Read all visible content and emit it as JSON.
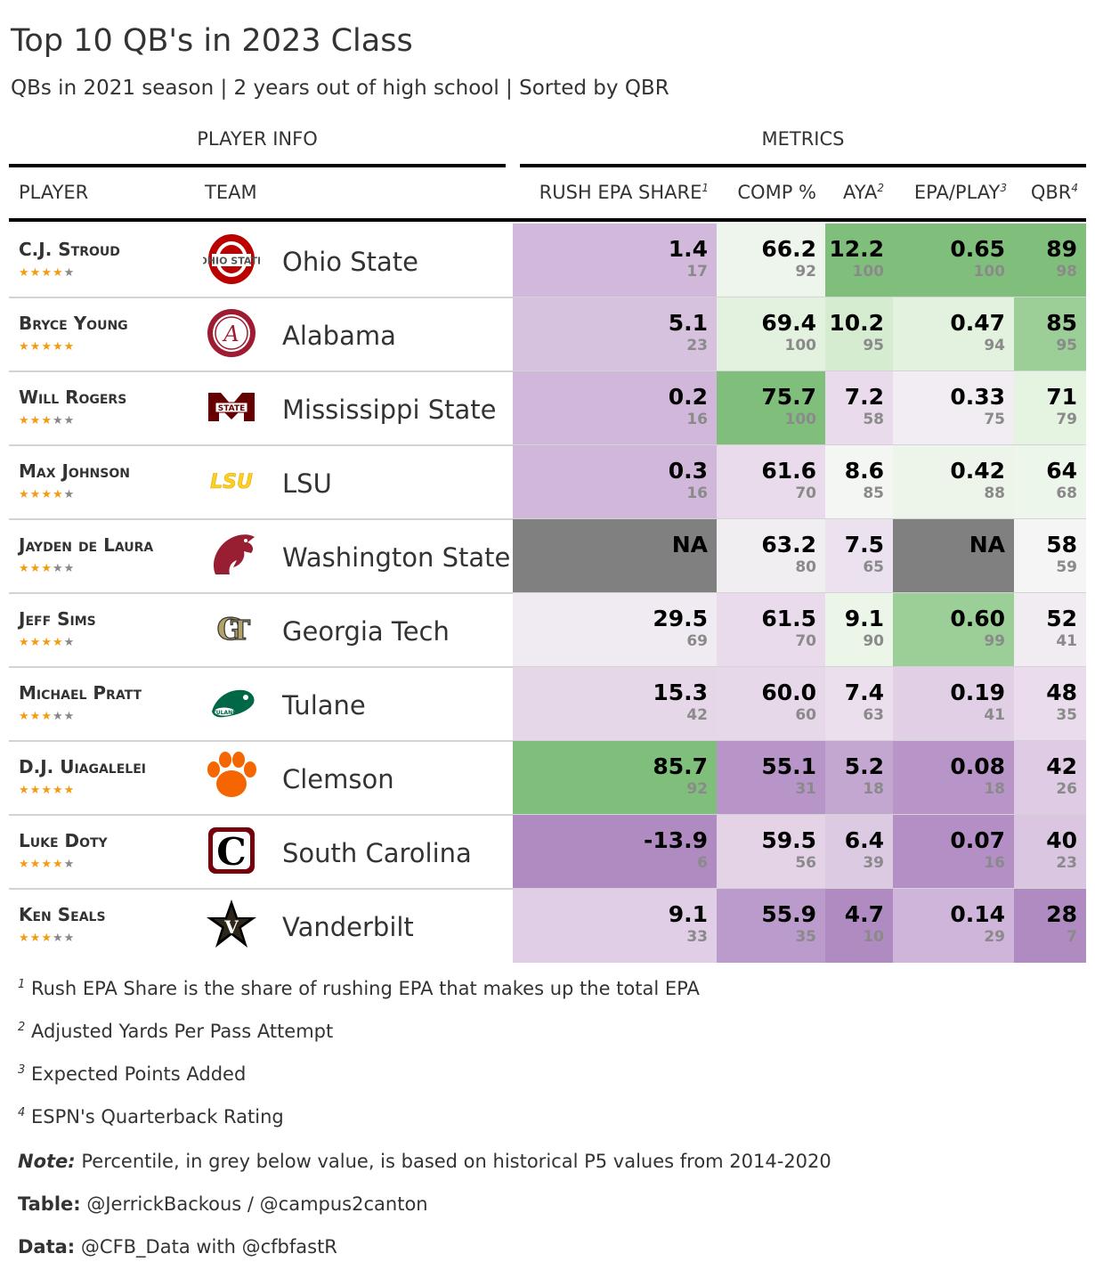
{
  "title": "Top 10 QB's in 2023 Class",
  "subtitle": "QBs in 2021 season | 2 years out of high school | Sorted by QBR",
  "spanners": {
    "player_info": "PLAYER INFO",
    "metrics": "METRICS"
  },
  "columns": {
    "player": "PLAYER",
    "team": "TEAM",
    "rush": "RUSH EPA SHARE",
    "rush_mark": "1",
    "comp": "COMP %",
    "aya": "AYA",
    "aya_mark": "2",
    "epa": "EPA/PLAY",
    "epa_mark": "3",
    "qbr": "QBR",
    "qbr_mark": "4"
  },
  "colors": {
    "green_dark": "#7fbf7b",
    "green_mid": "#a6d96a",
    "green_light": "#d9f0d3",
    "neutral": "#f7f7f7",
    "purple_light": "#e7d4e8",
    "purple_mid": "#c2a5cf",
    "purple_dark": "#9970ab",
    "na": "#808080",
    "star": "#f39c12"
  },
  "chart_data": {
    "type": "table",
    "title": "Top 10 QB's in 2023 Class",
    "subtitle": "QBs in 2021 season | 2 years out of high school | Sorted by QBR",
    "sort_by": "QBR",
    "rows": [
      {
        "player": "C.J. Stroud",
        "stars": 4,
        "team": "Ohio State",
        "logo": "ohio-state-logo",
        "rush": {
          "v": "1.4",
          "p": "17",
          "bg": "#d2b9dc"
        },
        "comp": {
          "v": "66.2",
          "p": "92",
          "bg": "#eef5ec"
        },
        "aya": {
          "v": "12.2",
          "p": "100",
          "bg": "#7fbf7b"
        },
        "epa": {
          "v": "0.65",
          "p": "100",
          "bg": "#7fbf7b"
        },
        "qbr": {
          "v": "89",
          "p": "98",
          "bg": "#7fbf7b"
        }
      },
      {
        "player": "Bryce Young",
        "stars": 5,
        "team": "Alabama",
        "logo": "alabama-logo",
        "rush": {
          "v": "5.1",
          "p": "23",
          "bg": "#d6c1df"
        },
        "comp": {
          "v": "69.4",
          "p": "100",
          "bg": "#e2f2de"
        },
        "aya": {
          "v": "10.2",
          "p": "95",
          "bg": "#d5ecd0"
        },
        "epa": {
          "v": "0.47",
          "p": "94",
          "bg": "#e2f2de"
        },
        "qbr": {
          "v": "85",
          "p": "95",
          "bg": "#9ccf97"
        }
      },
      {
        "player": "Will Rogers",
        "stars": 3,
        "team": "Mississippi State",
        "logo": "mississippi-state-logo",
        "rush": {
          "v": "0.2",
          "p": "16",
          "bg": "#d1b8db"
        },
        "comp": {
          "v": "75.7",
          "p": "100",
          "bg": "#7fbf7b"
        },
        "aya": {
          "v": "7.2",
          "p": "58",
          "bg": "#eadbec"
        },
        "epa": {
          "v": "0.33",
          "p": "75",
          "bg": "#f2edf3"
        },
        "qbr": {
          "v": "71",
          "p": "79",
          "bg": "#e5f3e1"
        }
      },
      {
        "player": "Max Johnson",
        "stars": 4,
        "team": "LSU",
        "logo": "lsu-logo",
        "rush": {
          "v": "0.3",
          "p": "16",
          "bg": "#d1b8db"
        },
        "comp": {
          "v": "61.6",
          "p": "70",
          "bg": "#eadbec"
        },
        "aya": {
          "v": "8.6",
          "p": "85",
          "bg": "#f4f6f3"
        },
        "epa": {
          "v": "0.42",
          "p": "88",
          "bg": "#edf5ea"
        },
        "qbr": {
          "v": "64",
          "p": "68",
          "bg": "#ecf6ea"
        }
      },
      {
        "player": "Jayden de Laura",
        "stars": 3,
        "team": "Washington State",
        "logo": "washington-state-logo",
        "rush": {
          "v": "NA",
          "p": "",
          "bg": "#808080"
        },
        "comp": {
          "v": "63.2",
          "p": "80",
          "bg": "#f1eef2"
        },
        "aya": {
          "v": "7.5",
          "p": "65",
          "bg": "#ece1ee"
        },
        "epa": {
          "v": "NA",
          "p": "",
          "bg": "#808080"
        },
        "qbr": {
          "v": "58",
          "p": "59",
          "bg": "#f5f5f5"
        }
      },
      {
        "player": "Jeff Sims",
        "stars": 4,
        "team": "Georgia Tech",
        "logo": "georgia-tech-logo",
        "rush": {
          "v": "29.5",
          "p": "69",
          "bg": "#f0ebf2"
        },
        "comp": {
          "v": "61.5",
          "p": "70",
          "bg": "#eadbec"
        },
        "aya": {
          "v": "9.1",
          "p": "90",
          "bg": "#ebf5e8"
        },
        "epa": {
          "v": "0.60",
          "p": "99",
          "bg": "#9ccf97"
        },
        "qbr": {
          "v": "52",
          "p": "41",
          "bg": "#f1ecf2"
        }
      },
      {
        "player": "Michael Pratt",
        "stars": 3,
        "team": "Tulane",
        "logo": "tulane-logo",
        "rush": {
          "v": "15.3",
          "p": "42",
          "bg": "#e5d6e8"
        },
        "comp": {
          "v": "60.0",
          "p": "60",
          "bg": "#e6d7e9"
        },
        "aya": {
          "v": "7.4",
          "p": "63",
          "bg": "#ebdfed"
        },
        "epa": {
          "v": "0.19",
          "p": "41",
          "bg": "#e1cfe5"
        },
        "qbr": {
          "v": "48",
          "p": "35",
          "bg": "#eadcec"
        }
      },
      {
        "player": "D.J. Uiagalelei",
        "stars": 5,
        "team": "Clemson",
        "logo": "clemson-logo",
        "rush": {
          "v": "85.7",
          "p": "92",
          "bg": "#7fbf7b"
        },
        "comp": {
          "v": "55.1",
          "p": "31",
          "bg": "#b895c8"
        },
        "aya": {
          "v": "5.2",
          "p": "18",
          "bg": "#c3a7d0"
        },
        "epa": {
          "v": "0.08",
          "p": "18",
          "bg": "#b895c8"
        },
        "qbr": {
          "v": "42",
          "p": "26",
          "bg": "#dfcbe4"
        }
      },
      {
        "player": "Luke Doty",
        "stars": 4,
        "team": "South Carolina",
        "logo": "south-carolina-logo",
        "rush": {
          "v": "-13.9",
          "p": "6",
          "bg": "#b08bc2"
        },
        "comp": {
          "v": "59.5",
          "p": "56",
          "bg": "#e4d3e7"
        },
        "aya": {
          "v": "6.4",
          "p": "39",
          "bg": "#dccae3"
        },
        "epa": {
          "v": "0.07",
          "p": "16",
          "bg": "#b48fc5"
        },
        "qbr": {
          "v": "40",
          "p": "23",
          "bg": "#dac6e1"
        }
      },
      {
        "player": "Ken Seals",
        "stars": 3,
        "team": "Vanderbilt",
        "logo": "vanderbilt-logo",
        "rush": {
          "v": "9.1",
          "p": "33",
          "bg": "#e0cde6"
        },
        "comp": {
          "v": "55.9",
          "p": "35",
          "bg": "#bb9bcb"
        },
        "aya": {
          "v": "4.7",
          "p": "10",
          "bg": "#b08bc2"
        },
        "epa": {
          "v": "0.14",
          "p": "29",
          "bg": "#cfb5da"
        },
        "qbr": {
          "v": "28",
          "p": "7",
          "bg": "#b08bc2"
        }
      }
    ]
  },
  "footnotes": {
    "f1": {
      "mark": "1",
      "text": "Rush EPA Share is the share of rushing EPA that makes up the total EPA"
    },
    "f2": {
      "mark": "2",
      "text": "Adjusted Yards Per Pass Attempt"
    },
    "f3": {
      "mark": "3",
      "text": "Expected Points Added"
    },
    "f4": {
      "mark": "4",
      "text": "ESPN's Quarterback Rating"
    }
  },
  "source_notes": {
    "note_label": "Note:",
    "note_text": "Percentile, in grey below value, is based on historical P5 values from 2014-2020",
    "table_label": "Table:",
    "table_text": "@JerrickBackous / @campus2canton",
    "data_label": "Data:",
    "data_text": "@CFB_Data with @cfbfastR"
  }
}
